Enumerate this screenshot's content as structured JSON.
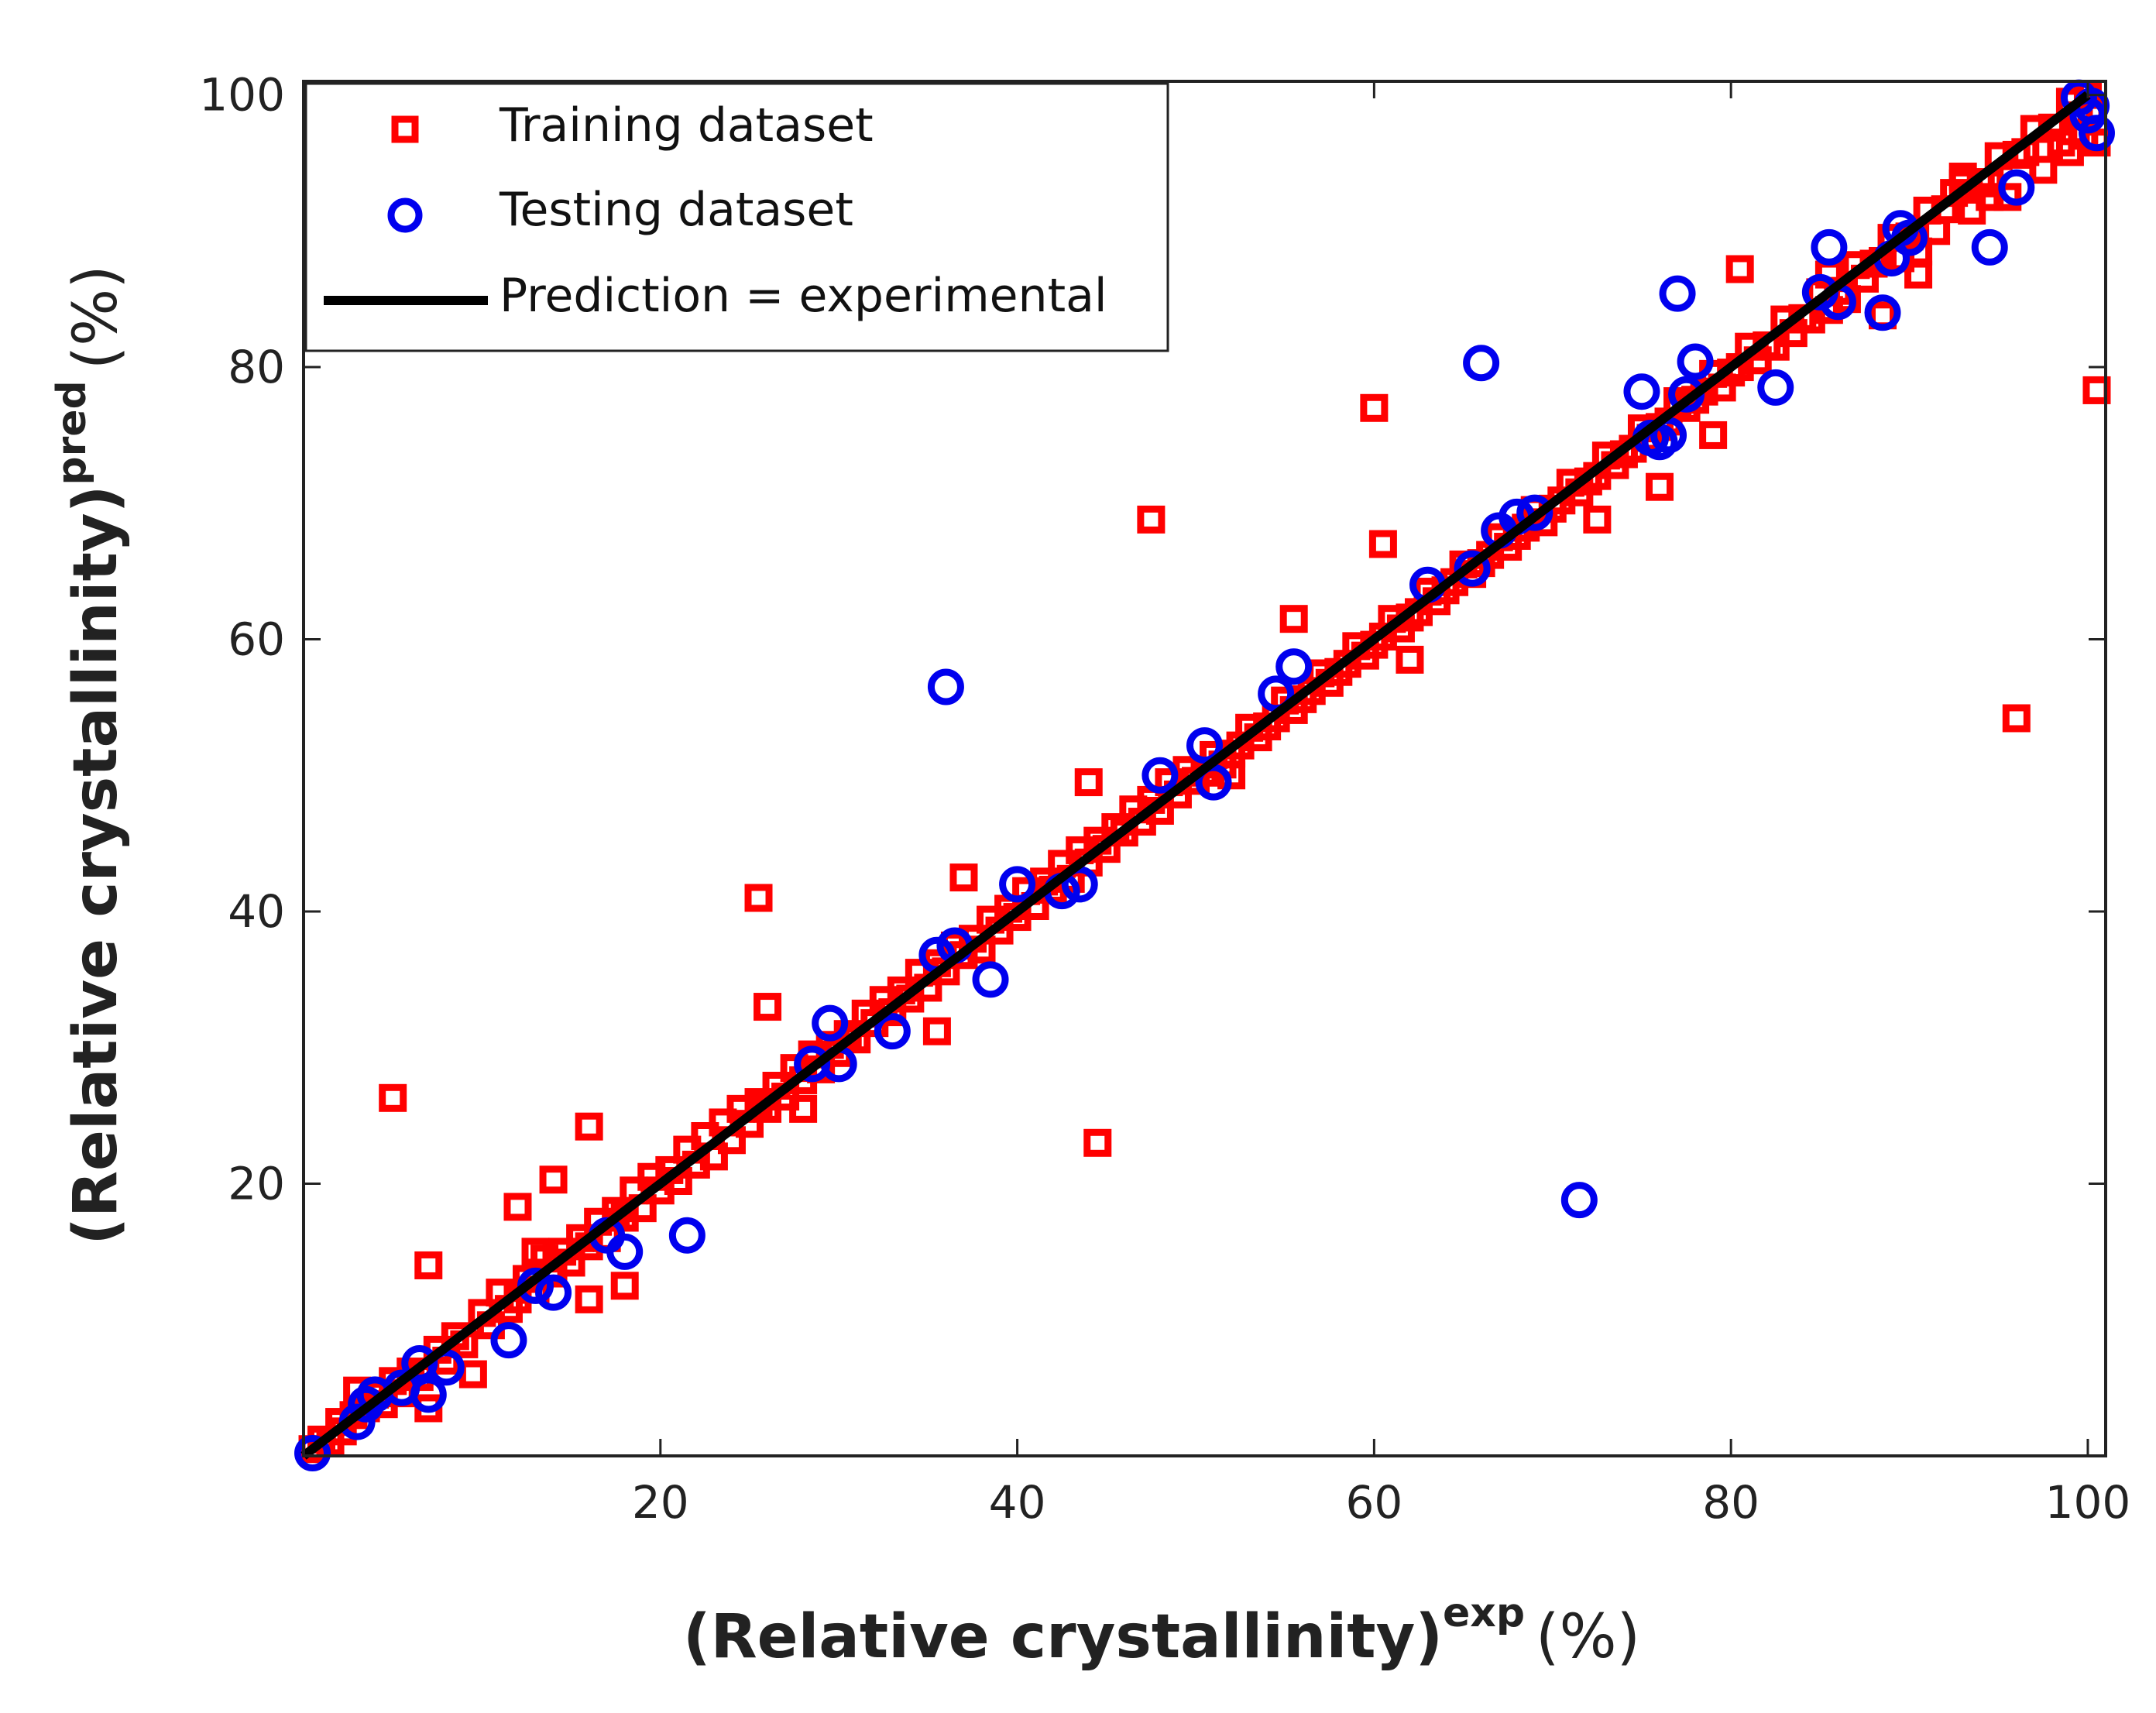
{
  "chart_data": {
    "type": "scatter",
    "title": "",
    "xlabel": {
      "main": "(Relative crystallinity)",
      "superscript": "exp",
      "unit": "(%)"
    },
    "ylabel": {
      "main": "(Relative crystallinity)",
      "superscript": "pred",
      "unit": "(%)"
    },
    "xlim": [
      0,
      101
    ],
    "ylim": [
      0,
      101
    ],
    "xticks": [
      20,
      40,
      60,
      80,
      100
    ],
    "yticks": [
      20,
      40,
      60,
      80,
      100
    ],
    "xtick_labels": [
      "20",
      "40",
      "60",
      "80",
      "100"
    ],
    "ytick_labels": [
      "20",
      "40",
      "60",
      "80",
      "100"
    ],
    "grid": false,
    "legend_position": "top-left",
    "series": [
      {
        "name": "Training dataset",
        "marker": "square",
        "color": "#ff0000",
        "points": [
          [
            0.5,
            0.5
          ],
          [
            1.0,
            1.2
          ],
          [
            1.5,
            1.0
          ],
          [
            2.0,
            2.5
          ],
          [
            2.2,
            1.8
          ],
          [
            2.8,
            3.0
          ],
          [
            3.0,
            4.8
          ],
          [
            3.5,
            3.5
          ],
          [
            4.0,
            4.5
          ],
          [
            4.5,
            3.8
          ],
          [
            5.0,
            5.5
          ],
          [
            5.5,
            4.6
          ],
          [
            6.0,
            6.2
          ],
          [
            6.5,
            5.8
          ],
          [
            7.0,
            3.5
          ],
          [
            7.5,
            7.8
          ],
          [
            8.0,
            7.0
          ],
          [
            8.5,
            8.8
          ],
          [
            9.0,
            8.2
          ],
          [
            9.5,
            6.0
          ],
          [
            10.0,
            10.5
          ],
          [
            10.5,
            9.6
          ],
          [
            11.0,
            12.0
          ],
          [
            11.5,
            10.8
          ],
          [
            12.0,
            11.5
          ],
          [
            12.5,
            13.0
          ],
          [
            13.0,
            12.2
          ],
          [
            13.5,
            14.5
          ],
          [
            14.0,
            13.4
          ],
          [
            14.5,
            15.0
          ],
          [
            15.0,
            14.2
          ],
          [
            15.5,
            16.0
          ],
          [
            16.0,
            15.4
          ],
          [
            16.5,
            17.2
          ],
          [
            17.0,
            16.0
          ],
          [
            17.5,
            18.0
          ],
          [
            18.0,
            17.5
          ],
          [
            18.5,
            19.5
          ],
          [
            19.0,
            18.2
          ],
          [
            19.5,
            20.5
          ],
          [
            20.0,
            19.5
          ],
          [
            20.5,
            21.0
          ],
          [
            21.0,
            20.2
          ],
          [
            21.5,
            22.5
          ],
          [
            22.0,
            21.4
          ],
          [
            22.5,
            23.5
          ],
          [
            23.0,
            22.0
          ],
          [
            23.5,
            24.5
          ],
          [
            24.0,
            23.2
          ],
          [
            24.5,
            25.5
          ],
          [
            25.0,
            24.4
          ],
          [
            25.5,
            26.0
          ],
          [
            26.0,
            25.5
          ],
          [
            26.5,
            27.2
          ],
          [
            27.0,
            26.4
          ],
          [
            27.5,
            28.5
          ],
          [
            28.0,
            27.6
          ],
          [
            28.5,
            29.5
          ],
          [
            29.0,
            28.4
          ],
          [
            29.5,
            30.2
          ],
          [
            30.0,
            29.6
          ],
          [
            30.5,
            31.0
          ],
          [
            31.0,
            30.6
          ],
          [
            31.5,
            32.5
          ],
          [
            32.0,
            31.8
          ],
          [
            32.5,
            33.5
          ],
          [
            33.0,
            32.6
          ],
          [
            33.5,
            34.2
          ],
          [
            34.0,
            33.6
          ],
          [
            34.5,
            35.5
          ],
          [
            35.0,
            34.4
          ],
          [
            35.5,
            36.2
          ],
          [
            36.0,
            35.6
          ],
          [
            36.5,
            37.5
          ],
          [
            37.0,
            36.8
          ],
          [
            37.5,
            38.0
          ],
          [
            38.0,
            37.2
          ],
          [
            38.5,
            39.4
          ],
          [
            39.0,
            38.6
          ],
          [
            39.5,
            40.2
          ],
          [
            40.0,
            39.6
          ],
          [
            40.5,
            41.5
          ],
          [
            41.0,
            40.4
          ],
          [
            41.5,
            42.2
          ],
          [
            42.0,
            41.6
          ],
          [
            42.5,
            43.5
          ],
          [
            43.0,
            42.4
          ],
          [
            43.5,
            44.5
          ],
          [
            44.0,
            43.6
          ],
          [
            44.5,
            45.2
          ],
          [
            45.0,
            44.6
          ],
          [
            45.5,
            46.2
          ],
          [
            46.0,
            45.8
          ],
          [
            46.5,
            47.5
          ],
          [
            47.0,
            46.6
          ],
          [
            47.5,
            48.2
          ],
          [
            48.0,
            47.4
          ],
          [
            48.5,
            49.5
          ],
          [
            49.0,
            48.6
          ],
          [
            49.5,
            50.4
          ],
          [
            50.0,
            49.6
          ],
          [
            51.0,
            51.5
          ],
          [
            52.0,
            51.6
          ],
          [
            53.0,
            53.5
          ],
          [
            54.0,
            53.6
          ],
          [
            55.0,
            55.5
          ],
          [
            56.0,
            55.6
          ],
          [
            57.0,
            57.5
          ],
          [
            58.0,
            57.6
          ],
          [
            59.0,
            59.5
          ],
          [
            60.0,
            59.6
          ],
          [
            61.0,
            61.5
          ],
          [
            62.0,
            61.6
          ],
          [
            63.0,
            63.5
          ],
          [
            64.0,
            63.6
          ],
          [
            65.0,
            65.5
          ],
          [
            66.0,
            65.6
          ],
          [
            67.0,
            67.5
          ],
          [
            68.0,
            67.6
          ],
          [
            69.0,
            69.5
          ],
          [
            70.0,
            69.6
          ],
          [
            71.0,
            71.5
          ],
          [
            72.0,
            71.6
          ],
          [
            73.0,
            73.5
          ],
          [
            74.0,
            73.6
          ],
          [
            75.0,
            75.5
          ],
          [
            76.0,
            75.6
          ],
          [
            77.0,
            77.5
          ],
          [
            78.0,
            77.6
          ],
          [
            79.0,
            79.5
          ],
          [
            80.0,
            79.6
          ],
          [
            81.0,
            81.5
          ],
          [
            82.0,
            81.6
          ],
          [
            83.0,
            83.5
          ],
          [
            84.0,
            83.6
          ],
          [
            85.0,
            85.5
          ],
          [
            86.0,
            85.6
          ],
          [
            87.0,
            87.5
          ],
          [
            88.0,
            87.6
          ],
          [
            89.0,
            89.5
          ],
          [
            90.0,
            89.6
          ],
          [
            91.0,
            91.5
          ],
          [
            92.0,
            91.6
          ],
          [
            93.0,
            93.5
          ],
          [
            94.0,
            93.6
          ],
          [
            95.0,
            95.5
          ],
          [
            96.0,
            95.6
          ],
          [
            97.0,
            97.5
          ],
          [
            98.0,
            97.6
          ],
          [
            99.0,
            99.5
          ],
          [
            99.5,
            98.5
          ],
          [
            100.0,
            100.0
          ],
          [
            100.2,
            99.0
          ],
          [
            100.5,
            96.5
          ],
          [
            99.8,
            97.0
          ],
          [
            99.0,
            95.8
          ],
          [
            98.5,
            96.5
          ],
          [
            97.5,
            94.5
          ],
          [
            96.5,
            95.8
          ],
          [
            95.5,
            92.5
          ],
          [
            94.5,
            93.5
          ],
          [
            93.5,
            91.5
          ],
          [
            92.5,
            92.8
          ],
          [
            91.5,
            90.0
          ],
          [
            90.5,
            88.5
          ],
          [
            89.5,
            88.0
          ],
          [
            88.5,
            87.8
          ],
          [
            87.5,
            86.5
          ],
          [
            86.5,
            85.0
          ],
          [
            85.5,
            84.2
          ],
          [
            84.5,
            83.5
          ],
          [
            83.5,
            82.5
          ],
          [
            82.5,
            81.5
          ],
          [
            81.5,
            80.5
          ],
          [
            80.5,
            80.0
          ],
          [
            79.5,
            78.5
          ],
          [
            78.5,
            78.2
          ],
          [
            77.5,
            77.0
          ],
          [
            76.5,
            76.0
          ],
          [
            75.5,
            74.8
          ],
          [
            74.5,
            74.0
          ],
          [
            73.5,
            72.8
          ],
          [
            72.5,
            72.0
          ],
          [
            71.5,
            70.8
          ],
          [
            70.5,
            70.2
          ],
          [
            69.5,
            68.6
          ],
          [
            68.5,
            68.2
          ],
          [
            67.5,
            66.8
          ],
          [
            66.5,
            66.2
          ],
          [
            65.5,
            64.8
          ],
          [
            64.5,
            64.2
          ],
          [
            63.5,
            62.8
          ],
          [
            62.5,
            62.0
          ],
          [
            61.5,
            60.8
          ],
          [
            60.5,
            60.2
          ],
          [
            59.5,
            58.8
          ],
          [
            58.5,
            58.2
          ],
          [
            57.5,
            56.8
          ],
          [
            56.5,
            56.2
          ],
          [
            55.5,
            54.8
          ],
          [
            54.5,
            54.2
          ],
          [
            53.5,
            52.8
          ],
          [
            52.5,
            52.2
          ],
          [
            51.5,
            50.8
          ],
          [
            50.5,
            50.2
          ],
          [
            5.0,
            26.3
          ],
          [
            7.0,
            14.0
          ],
          [
            12.0,
            18.3
          ],
          [
            14.0,
            20.3
          ],
          [
            16.0,
            24.2
          ],
          [
            16.0,
            11.5
          ],
          [
            18.0,
            12.5
          ],
          [
            13.0,
            15.0
          ],
          [
            25.5,
            41.0
          ],
          [
            26.0,
            33.0
          ],
          [
            28.0,
            25.5
          ],
          [
            35.5,
            31.2
          ],
          [
            37.0,
            42.5
          ],
          [
            44.5,
            23.0
          ],
          [
            44.0,
            49.5
          ],
          [
            47.5,
            68.8
          ],
          [
            52.0,
            50.0
          ],
          [
            55.5,
            61.5
          ],
          [
            60.0,
            77.0
          ],
          [
            60.5,
            67.0
          ],
          [
            62.0,
            58.5
          ],
          [
            72.5,
            68.8
          ],
          [
            76.0,
            71.2
          ],
          [
            79.0,
            75.0
          ],
          [
            80.5,
            87.2
          ],
          [
            85.5,
            86.8
          ],
          [
            88.5,
            83.8
          ],
          [
            90.5,
            86.8
          ],
          [
            93.0,
            94.0
          ],
          [
            94.5,
            92.5
          ],
          [
            96.0,
            54.2
          ],
          [
            100.5,
            78.3
          ]
        ]
      },
      {
        "name": "Testing dataset",
        "marker": "circle",
        "color": "#0000ee",
        "points": [
          [
            0.5,
            0.2
          ],
          [
            3.0,
            2.5
          ],
          [
            3.5,
            3.8
          ],
          [
            4.0,
            4.5
          ],
          [
            5.5,
            5.0
          ],
          [
            6.5,
            6.8
          ],
          [
            7.0,
            4.5
          ],
          [
            8.0,
            6.5
          ],
          [
            11.5,
            8.5
          ],
          [
            13.0,
            12.5
          ],
          [
            14.0,
            12.0
          ],
          [
            17.0,
            16.2
          ],
          [
            18.0,
            15.0
          ],
          [
            21.5,
            16.2
          ],
          [
            28.5,
            28.8
          ],
          [
            29.5,
            31.8
          ],
          [
            30.0,
            28.8
          ],
          [
            33.0,
            31.2
          ],
          [
            35.5,
            36.8
          ],
          [
            36.0,
            56.5
          ],
          [
            36.5,
            37.5
          ],
          [
            38.5,
            35.0
          ],
          [
            40.0,
            42.0
          ],
          [
            42.5,
            41.5
          ],
          [
            43.5,
            42.0
          ],
          [
            48.0,
            50.0
          ],
          [
            50.5,
            52.2
          ],
          [
            51.0,
            49.5
          ],
          [
            54.5,
            56.0
          ],
          [
            55.5,
            58.0
          ],
          [
            63.0,
            64.0
          ],
          [
            65.5,
            65.2
          ],
          [
            66.0,
            80.3
          ],
          [
            67.0,
            68.0
          ],
          [
            68.0,
            69.0
          ],
          [
            69.0,
            69.3
          ],
          [
            71.5,
            18.8
          ],
          [
            75.0,
            78.2
          ],
          [
            75.5,
            74.8
          ],
          [
            76.0,
            74.5
          ],
          [
            76.5,
            75.0
          ],
          [
            77.0,
            85.4
          ],
          [
            77.5,
            78.0
          ],
          [
            78.0,
            80.4
          ],
          [
            82.5,
            78.5
          ],
          [
            85.0,
            85.5
          ],
          [
            85.5,
            88.8
          ],
          [
            86.0,
            84.8
          ],
          [
            88.5,
            84.0
          ],
          [
            89.0,
            88.0
          ],
          [
            89.5,
            90.2
          ],
          [
            90.0,
            89.5
          ],
          [
            94.5,
            88.8
          ],
          [
            96.0,
            93.2
          ],
          [
            99.5,
            99.8
          ],
          [
            100.0,
            98.5
          ],
          [
            100.5,
            97.2
          ],
          [
            100.2,
            99.2
          ]
        ]
      },
      {
        "name": "Prediction = experimental",
        "marker": "line",
        "color": "#000000",
        "points": [
          [
            0,
            0
          ],
          [
            100,
            100
          ]
        ]
      }
    ]
  }
}
